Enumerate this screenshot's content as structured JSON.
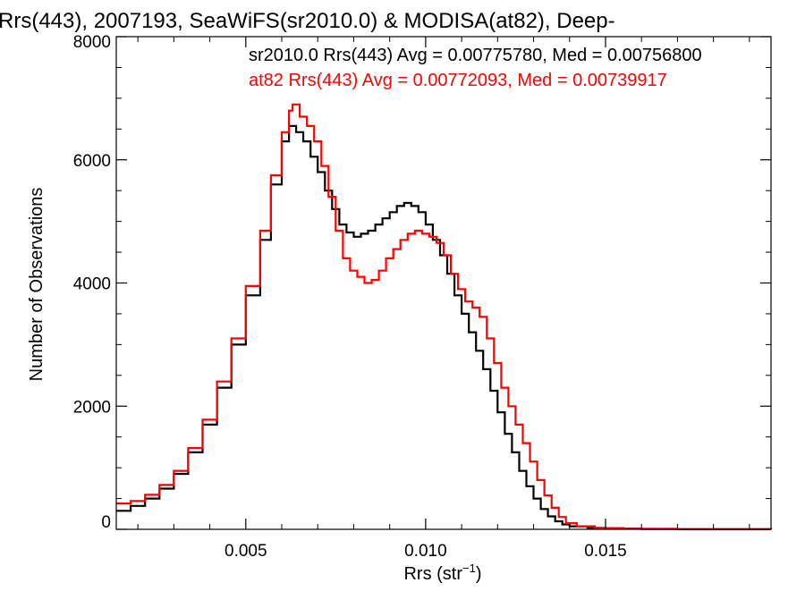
{
  "chart_data": {
    "type": "line",
    "title": "Rrs(443), 2007193, SeaWiFS(sr2010.0) & MODISA(at82), Deep-",
    "xlabel": "Rrs (str",
    "xlabel_sup": "−1",
    "xlabel_close": ")",
    "ylabel": "Number of Observations",
    "xlim": [
      0.0014,
      0.0196
    ],
    "ylim": [
      0,
      8000
    ],
    "x_ticks": [
      0.005,
      0.01,
      0.015
    ],
    "x_tick_labels": [
      "0.005",
      "0.010",
      "0.015"
    ],
    "y_ticks": [
      0,
      2000,
      4000,
      6000,
      8000
    ],
    "y_tick_labels": [
      "0",
      "2000",
      "4000",
      "6000",
      "8000"
    ],
    "x_minor_step": 0.001,
    "y_minor_step": 500,
    "grid": false,
    "series": [
      {
        "name": "sr2010.0",
        "color": "#000000",
        "label": "sr2010.0 Rrs(443) Avg = 0.00775780, Med = 0.00756800",
        "points": [
          [
            0.0014,
            300
          ],
          [
            0.0018,
            380
          ],
          [
            0.0022,
            500
          ],
          [
            0.0026,
            660
          ],
          [
            0.003,
            900
          ],
          [
            0.0034,
            1250
          ],
          [
            0.0038,
            1700
          ],
          [
            0.0042,
            2300
          ],
          [
            0.0046,
            3000
          ],
          [
            0.005,
            3800
          ],
          [
            0.0054,
            4700
          ],
          [
            0.0057,
            5600
          ],
          [
            0.006,
            6300
          ],
          [
            0.0062,
            6550
          ],
          [
            0.0064,
            6450
          ],
          [
            0.0066,
            6300
          ],
          [
            0.0068,
            6050
          ],
          [
            0.007,
            5800
          ],
          [
            0.0072,
            5500
          ],
          [
            0.0074,
            5200
          ],
          [
            0.0076,
            4950
          ],
          [
            0.0078,
            4820
          ],
          [
            0.008,
            4750
          ],
          [
            0.0082,
            4800
          ],
          [
            0.0084,
            4850
          ],
          [
            0.0086,
            4950
          ],
          [
            0.0088,
            5050
          ],
          [
            0.009,
            5150
          ],
          [
            0.0092,
            5250
          ],
          [
            0.0094,
            5300
          ],
          [
            0.0096,
            5250
          ],
          [
            0.0098,
            5150
          ],
          [
            0.01,
            4950
          ],
          [
            0.0102,
            4700
          ],
          [
            0.0104,
            4450
          ],
          [
            0.0106,
            4150
          ],
          [
            0.0108,
            3800
          ],
          [
            0.011,
            3500
          ],
          [
            0.0112,
            3200
          ],
          [
            0.0114,
            2900
          ],
          [
            0.0116,
            2600
          ],
          [
            0.0118,
            2250
          ],
          [
            0.012,
            1900
          ],
          [
            0.0122,
            1550
          ],
          [
            0.0124,
            1250
          ],
          [
            0.0126,
            950
          ],
          [
            0.0128,
            700
          ],
          [
            0.013,
            500
          ],
          [
            0.0132,
            330
          ],
          [
            0.0134,
            210
          ],
          [
            0.0136,
            130
          ],
          [
            0.0138,
            80
          ],
          [
            0.014,
            50
          ],
          [
            0.0145,
            25
          ],
          [
            0.015,
            12
          ],
          [
            0.016,
            5
          ],
          [
            0.017,
            2
          ],
          [
            0.0196,
            0
          ]
        ]
      },
      {
        "name": "at82",
        "color": "#ff0000",
        "label": "at82 Rrs(443) Avg = 0.00772093, Med = 0.00739917",
        "points": [
          [
            0.0014,
            420
          ],
          [
            0.0018,
            460
          ],
          [
            0.0022,
            560
          ],
          [
            0.0026,
            720
          ],
          [
            0.003,
            950
          ],
          [
            0.0034,
            1320
          ],
          [
            0.0038,
            1780
          ],
          [
            0.0042,
            2400
          ],
          [
            0.0046,
            3100
          ],
          [
            0.005,
            3950
          ],
          [
            0.0054,
            4850
          ],
          [
            0.0057,
            5750
          ],
          [
            0.006,
            6450
          ],
          [
            0.0062,
            6800
          ],
          [
            0.0063,
            6900
          ],
          [
            0.0065,
            6700
          ],
          [
            0.0067,
            6550
          ],
          [
            0.0069,
            6300
          ],
          [
            0.0071,
            5900
          ],
          [
            0.0073,
            5400
          ],
          [
            0.0075,
            4850
          ],
          [
            0.0077,
            4400
          ],
          [
            0.0079,
            4200
          ],
          [
            0.0081,
            4100
          ],
          [
            0.0083,
            4000
          ],
          [
            0.0085,
            4050
          ],
          [
            0.0087,
            4200
          ],
          [
            0.0089,
            4400
          ],
          [
            0.0091,
            4550
          ],
          [
            0.0093,
            4700
          ],
          [
            0.0095,
            4800
          ],
          [
            0.0097,
            4850
          ],
          [
            0.0099,
            4800
          ],
          [
            0.0101,
            4750
          ],
          [
            0.0103,
            4650
          ],
          [
            0.0105,
            4450
          ],
          [
            0.0107,
            4150
          ],
          [
            0.0109,
            3900
          ],
          [
            0.0111,
            3700
          ],
          [
            0.0113,
            3600
          ],
          [
            0.0115,
            3450
          ],
          [
            0.0117,
            3100
          ],
          [
            0.0119,
            2700
          ],
          [
            0.0121,
            2300
          ],
          [
            0.0123,
            2000
          ],
          [
            0.0125,
            1700
          ],
          [
            0.0127,
            1400
          ],
          [
            0.0129,
            1100
          ],
          [
            0.0131,
            800
          ],
          [
            0.0133,
            550
          ],
          [
            0.0135,
            350
          ],
          [
            0.0137,
            200
          ],
          [
            0.0139,
            100
          ],
          [
            0.0142,
            50
          ],
          [
            0.0147,
            20
          ],
          [
            0.0155,
            8
          ],
          [
            0.017,
            3
          ],
          [
            0.0196,
            0
          ]
        ]
      }
    ]
  }
}
